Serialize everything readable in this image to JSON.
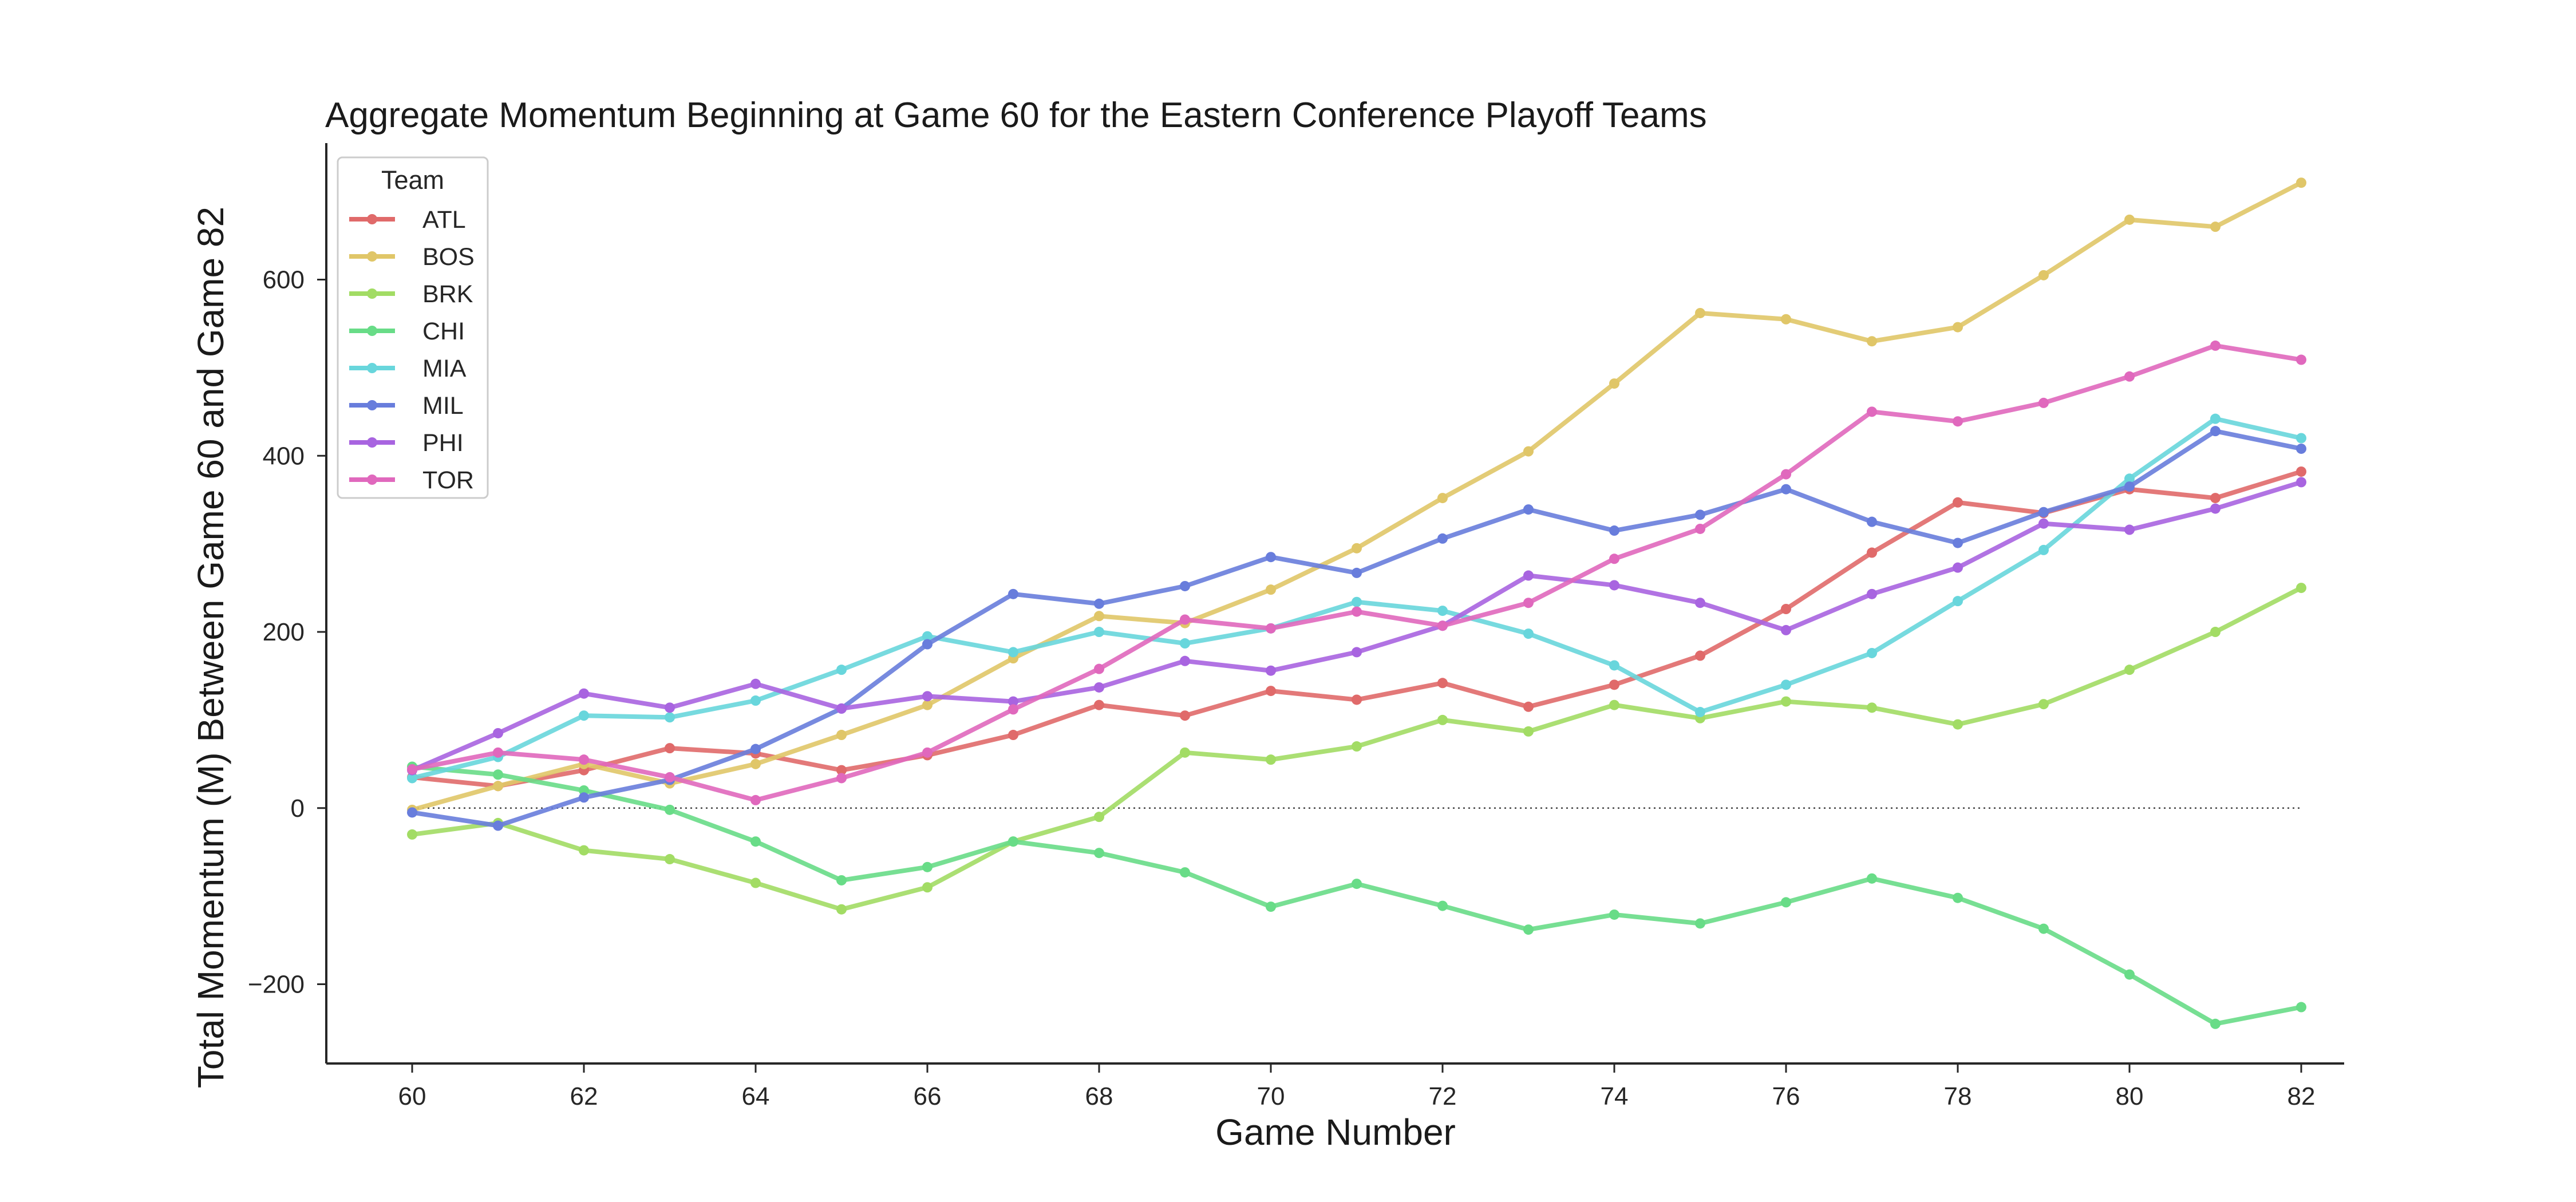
{
  "chart_data": {
    "type": "line",
    "title": "Aggregate Momentum Beginning at Game 60 for the Eastern Conference Playoff Teams",
    "xlabel": "Game Number",
    "ylabel": "Total Momentum (M) Between Game 60 and Game 82",
    "xlim": [
      59,
      82.5
    ],
    "ylim": [
      -290,
      755
    ],
    "xticks": [
      60,
      62,
      64,
      66,
      68,
      70,
      72,
      74,
      76,
      78,
      80,
      82
    ],
    "yticks": [
      -200,
      0,
      200,
      400,
      600
    ],
    "x": [
      60,
      61,
      62,
      63,
      64,
      65,
      66,
      67,
      68,
      69,
      70,
      71,
      72,
      73,
      74,
      75,
      76,
      77,
      78,
      79,
      80,
      81,
      82
    ],
    "reference_line": {
      "y": 0,
      "style": "dotted"
    },
    "grid": false,
    "legend": {
      "title": "Team",
      "position": "top-left"
    },
    "series": [
      {
        "name": "ATL",
        "color": "#e06a6a",
        "values": [
          35,
          25,
          43,
          68,
          62,
          43,
          60,
          83,
          117,
          105,
          133,
          123,
          142,
          115,
          140,
          173,
          226,
          290,
          347,
          335,
          362,
          352,
          382
        ]
      },
      {
        "name": "BOS",
        "color": "#e0c668",
        "values": [
          -2,
          25,
          50,
          28,
          50,
          83,
          117,
          170,
          218,
          210,
          248,
          295,
          352,
          405,
          482,
          562,
          555,
          530,
          546,
          605,
          668,
          660,
          710
        ]
      },
      {
        "name": "BRK",
        "color": "#a2dc64",
        "values": [
          -30,
          -17,
          -48,
          -58,
          -85,
          -115,
          -90,
          -38,
          -10,
          63,
          55,
          70,
          100,
          87,
          117,
          102,
          121,
          114,
          95,
          118,
          157,
          200,
          250
        ]
      },
      {
        "name": "CHI",
        "color": "#68dc87",
        "values": [
          47,
          38,
          20,
          -2,
          -38,
          -82,
          -67,
          -38,
          -51,
          -73,
          -112,
          -86,
          -111,
          -138,
          -121,
          -131,
          -107,
          -80,
          -102,
          -137,
          -189,
          -245,
          -226
        ]
      },
      {
        "name": "MIA",
        "color": "#68d6dc",
        "values": [
          34,
          58,
          105,
          103,
          122,
          157,
          195,
          177,
          200,
          187,
          204,
          234,
          224,
          198,
          162,
          109,
          140,
          176,
          235,
          293,
          374,
          442,
          420
        ]
      },
      {
        "name": "MIL",
        "color": "#687ddc",
        "values": [
          -5,
          -20,
          12,
          32,
          67,
          113,
          186,
          243,
          232,
          252,
          285,
          267,
          306,
          339,
          315,
          333,
          362,
          325,
          301,
          336,
          365,
          428,
          408
        ]
      },
      {
        "name": "PHI",
        "color": "#a864e0",
        "values": [
          43,
          85,
          130,
          114,
          141,
          113,
          127,
          121,
          137,
          167,
          156,
          177,
          207,
          264,
          253,
          233,
          202,
          243,
          273,
          323,
          316,
          340,
          370
        ]
      },
      {
        "name": "TOR",
        "color": "#e068bd",
        "values": [
          44,
          63,
          55,
          35,
          9,
          34,
          63,
          112,
          158,
          214,
          204,
          223,
          207,
          233,
          283,
          317,
          379,
          450,
          439,
          460,
          490,
          525,
          509
        ]
      }
    ]
  }
}
